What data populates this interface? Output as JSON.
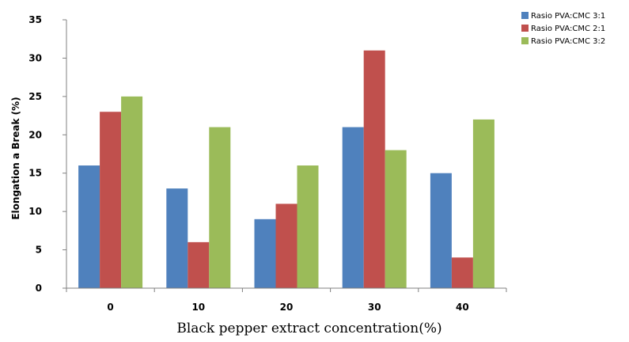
{
  "chart_data": {
    "type": "bar",
    "title": "",
    "xlabel": "Black pepper extract concentration(%)",
    "ylabel": "Elongation a Break (%)",
    "categories": [
      "0",
      "10",
      "20",
      "30",
      "40"
    ],
    "ylim": [
      0,
      35
    ],
    "yticks": [
      "0",
      "5",
      "10",
      "15",
      "20",
      "25",
      "30",
      "35"
    ],
    "grid": false,
    "legend_position": "top-right",
    "series": [
      {
        "name": "Rasio PVA:CMC 3:1",
        "color": "#4f81bd",
        "values": [
          16,
          13,
          9,
          21,
          15
        ]
      },
      {
        "name": "Rasio PVA:CMC 2:1",
        "color": "#c0504d",
        "values": [
          23,
          6,
          11,
          31,
          4
        ]
      },
      {
        "name": "Rasio PVA:CMC 3:2",
        "color": "#9bbb59",
        "values": [
          25,
          21,
          16,
          18,
          22
        ]
      }
    ]
  }
}
